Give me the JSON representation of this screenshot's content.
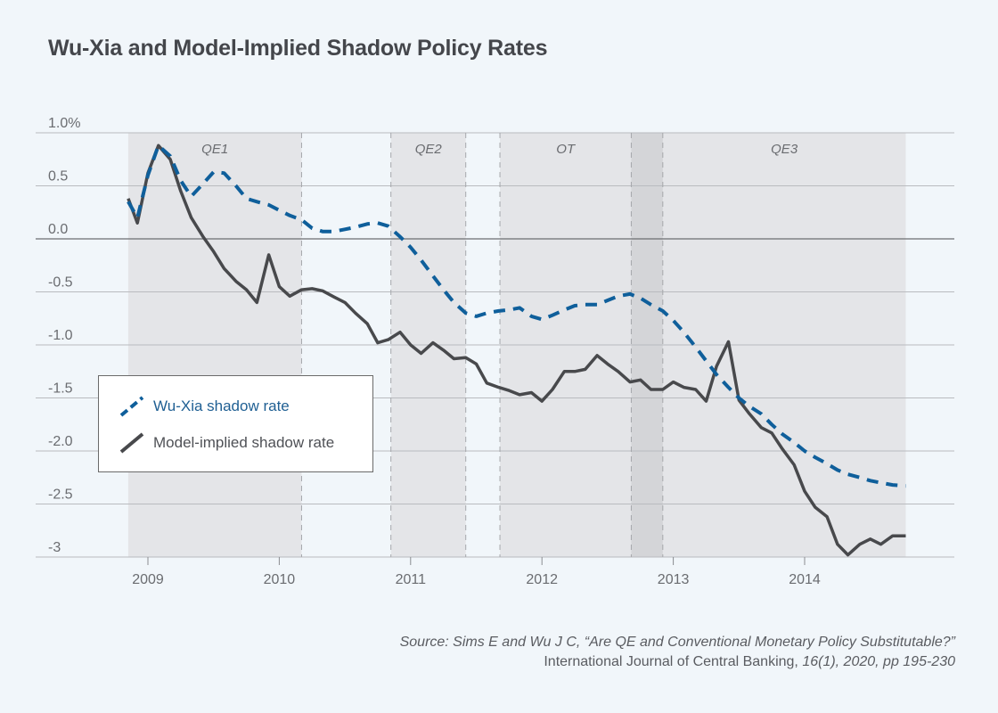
{
  "title": "Wu-Xia and Model-Implied Shadow Policy Rates",
  "source": {
    "line1": "Source: Sims E and Wu J C, “Are QE and Conventional Monetary Policy Substitutable?”",
    "line2_normal": "International Journal of Central Banking, ",
    "line2_italic": "16(1), 2020, pp 195-230"
  },
  "colors": {
    "wu_xia": "#0f5f9b",
    "model_implied": "#48494c",
    "shade": "#e4e5e8",
    "shade_dark": "#d4d5d8",
    "grid": "#b9bbbf",
    "zero_line": "#6b6d70",
    "axis_text": "#6a6c70",
    "background": "#f1f6fa"
  },
  "legend": {
    "items": [
      {
        "label": "Wu-Xia shadow rate",
        "style": "dashed"
      },
      {
        "label": "Model-implied shadow rate",
        "style": "solid"
      }
    ]
  },
  "chart_data": {
    "type": "line",
    "title": "Wu-Xia and Model-Implied Shadow Policy Rates",
    "xlabel": "",
    "ylabel": "",
    "xlim": [
      2008.2,
      2015.3
    ],
    "ylim": [
      -3,
      1.0
    ],
    "x_ticks": [
      2009,
      2010,
      2011,
      2012,
      2013,
      2014
    ],
    "x_tick_labels": [
      "2009",
      "2010",
      "2011",
      "2012",
      "2013",
      "2014"
    ],
    "y_ticks": [
      1.0,
      0.5,
      0.0,
      -0.5,
      -1.0,
      -1.5,
      -2.0,
      -2.5,
      -3
    ],
    "y_tick_labels": [
      "1.0%",
      "0.5",
      "0.0",
      "-0.5",
      "-1.0",
      "-1.5",
      "-2.0",
      "-2.5",
      "-3"
    ],
    "grid": true,
    "legend_position": "left-center",
    "shaded_periods": [
      {
        "label": "QE1",
        "start": 2008.85,
        "end": 2010.17
      },
      {
        "label": "QE2",
        "start": 2010.85,
        "end": 2011.42
      },
      {
        "label": "OT",
        "start": 2011.68,
        "end": 2012.92
      },
      {
        "label": "QE3",
        "start": 2012.68,
        "end": 2014.77
      }
    ],
    "series": [
      {
        "name": "Wu-Xia shadow rate",
        "style": "dashed",
        "x": [
          2008.85,
          2008.92,
          2009.0,
          2009.08,
          2009.17,
          2009.25,
          2009.33,
          2009.42,
          2009.5,
          2009.58,
          2009.67,
          2009.75,
          2009.83,
          2009.92,
          2010.0,
          2010.08,
          2010.17,
          2010.25,
          2010.33,
          2010.42,
          2010.5,
          2010.58,
          2010.67,
          2010.75,
          2010.83,
          2010.92,
          2011.0,
          2011.08,
          2011.17,
          2011.25,
          2011.33,
          2011.42,
          2011.5,
          2011.58,
          2011.67,
          2011.75,
          2011.83,
          2011.92,
          2012.0,
          2012.08,
          2012.17,
          2012.25,
          2012.33,
          2012.42,
          2012.5,
          2012.58,
          2012.67,
          2012.75,
          2012.83,
          2012.92,
          2013.0,
          2013.08,
          2013.17,
          2013.25,
          2013.33,
          2013.42,
          2013.5,
          2013.58,
          2013.67,
          2013.75,
          2013.83,
          2013.92,
          2014.0,
          2014.08,
          2014.17,
          2014.25,
          2014.33,
          2014.42,
          2014.5,
          2014.58,
          2014.67,
          2014.77
        ],
        "values": [
          0.35,
          0.2,
          0.6,
          0.88,
          0.78,
          0.55,
          0.4,
          0.52,
          0.63,
          0.62,
          0.5,
          0.38,
          0.35,
          0.32,
          0.27,
          0.22,
          0.18,
          0.1,
          0.07,
          0.07,
          0.09,
          0.11,
          0.14,
          0.15,
          0.12,
          0.02,
          -0.08,
          -0.2,
          -0.35,
          -0.48,
          -0.6,
          -0.7,
          -0.73,
          -0.7,
          -0.68,
          -0.67,
          -0.65,
          -0.73,
          -0.76,
          -0.72,
          -0.67,
          -0.63,
          -0.62,
          -0.62,
          -0.58,
          -0.54,
          -0.52,
          -0.56,
          -0.62,
          -0.68,
          -0.77,
          -0.88,
          -1.02,
          -1.15,
          -1.28,
          -1.4,
          -1.5,
          -1.58,
          -1.65,
          -1.75,
          -1.84,
          -1.92,
          -2.0,
          -2.06,
          -2.12,
          -2.18,
          -2.22,
          -2.25,
          -2.28,
          -2.3,
          -2.32,
          -2.33
        ]
      },
      {
        "name": "Model-implied shadow rate",
        "style": "solid",
        "x": [
          2008.85,
          2008.92,
          2009.0,
          2009.08,
          2009.17,
          2009.25,
          2009.33,
          2009.42,
          2009.5,
          2009.58,
          2009.67,
          2009.75,
          2009.83,
          2009.92,
          2010.0,
          2010.08,
          2010.17,
          2010.25,
          2010.33,
          2010.42,
          2010.5,
          2010.58,
          2010.67,
          2010.75,
          2010.83,
          2010.92,
          2011.0,
          2011.08,
          2011.17,
          2011.25,
          2011.33,
          2011.42,
          2011.5,
          2011.58,
          2011.67,
          2011.75,
          2011.83,
          2011.92,
          2012.0,
          2012.08,
          2012.17,
          2012.25,
          2012.33,
          2012.42,
          2012.5,
          2012.58,
          2012.67,
          2012.75,
          2012.83,
          2012.92,
          2013.0,
          2013.08,
          2013.17,
          2013.25,
          2013.33,
          2013.42,
          2013.5,
          2013.58,
          2013.67,
          2013.75,
          2013.83,
          2013.92,
          2014.0,
          2014.08,
          2014.17,
          2014.25,
          2014.33,
          2014.42,
          2014.5,
          2014.58,
          2014.67,
          2014.77
        ],
        "values": [
          0.38,
          0.15,
          0.62,
          0.88,
          0.75,
          0.45,
          0.2,
          0.02,
          -0.12,
          -0.28,
          -0.4,
          -0.48,
          -0.6,
          -0.15,
          -0.45,
          -0.54,
          -0.48,
          -0.47,
          -0.49,
          -0.55,
          -0.6,
          -0.7,
          -0.8,
          -0.98,
          -0.95,
          -0.88,
          -1.0,
          -1.08,
          -0.98,
          -1.05,
          -1.13,
          -1.12,
          -1.18,
          -1.36,
          -1.4,
          -1.43,
          -1.47,
          -1.45,
          -1.53,
          -1.42,
          -1.25,
          -1.25,
          -1.23,
          -1.1,
          -1.18,
          -1.25,
          -1.35,
          -1.33,
          -1.42,
          -1.42,
          -1.35,
          -1.4,
          -1.42,
          -1.53,
          -1.2,
          -0.97,
          -1.52,
          -1.65,
          -1.78,
          -1.83,
          -1.98,
          -2.13,
          -2.38,
          -2.53,
          -2.62,
          -2.88,
          -2.98,
          -2.88,
          -2.83,
          -2.88,
          -2.8,
          -2.8
        ]
      }
    ]
  }
}
